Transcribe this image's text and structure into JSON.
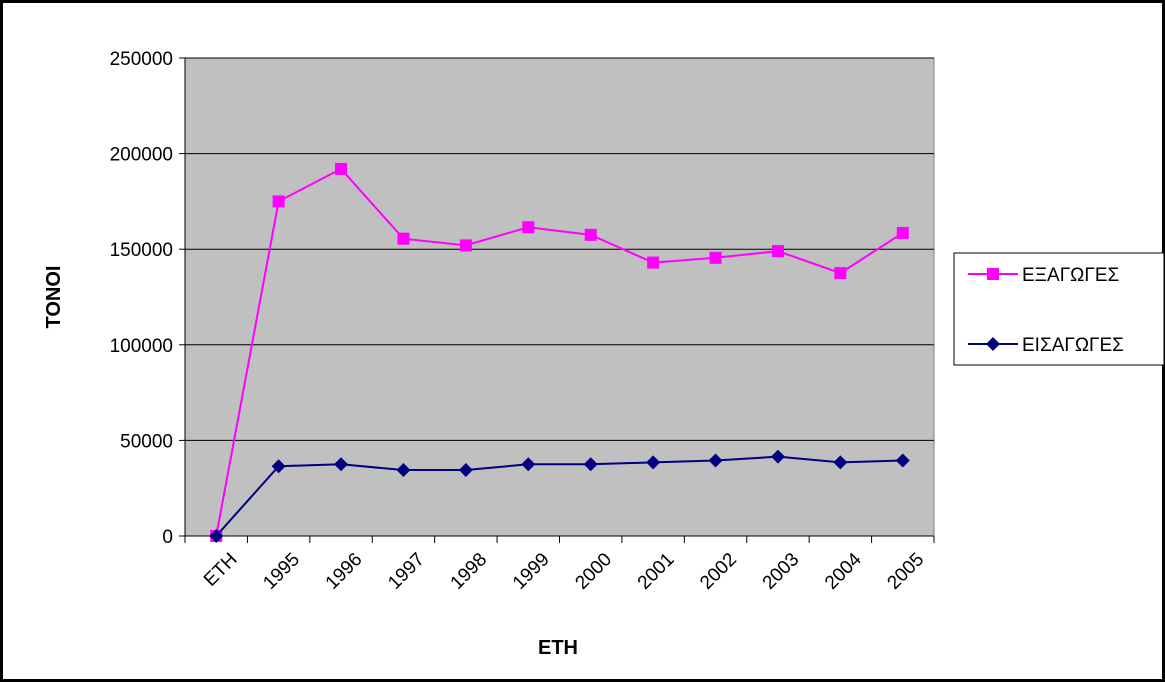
{
  "chart_data": {
    "type": "line",
    "title": "",
    "xlabel": "ΕΤΗ",
    "ylabel": "ΤΟΝΟΙ",
    "categories": [
      "ΕΤΗ",
      "1995",
      "1996",
      "1997",
      "1998",
      "1999",
      "2000",
      "2001",
      "2002",
      "2003",
      "2004",
      "2005"
    ],
    "ylim": [
      0,
      250000
    ],
    "yticks": [
      0,
      50000,
      100000,
      150000,
      200000,
      250000
    ],
    "grid": true,
    "legend_position": "right",
    "plot_background": "#C0C0C0",
    "series": [
      {
        "name": "ΕΞΑΓΩΓΕΣ",
        "color": "#FF00FF",
        "marker": "square",
        "values": [
          0,
          175000,
          192000,
          155500,
          152000,
          161500,
          157500,
          143000,
          145500,
          149000,
          137500,
          158500
        ]
      },
      {
        "name": "ΕΙΣΑΓΩΓΕΣ",
        "color": "#000080",
        "marker": "diamond",
        "values": [
          0,
          36500,
          37500,
          34500,
          34500,
          37500,
          37500,
          38500,
          39500,
          41500,
          38500,
          39500
        ]
      }
    ]
  }
}
